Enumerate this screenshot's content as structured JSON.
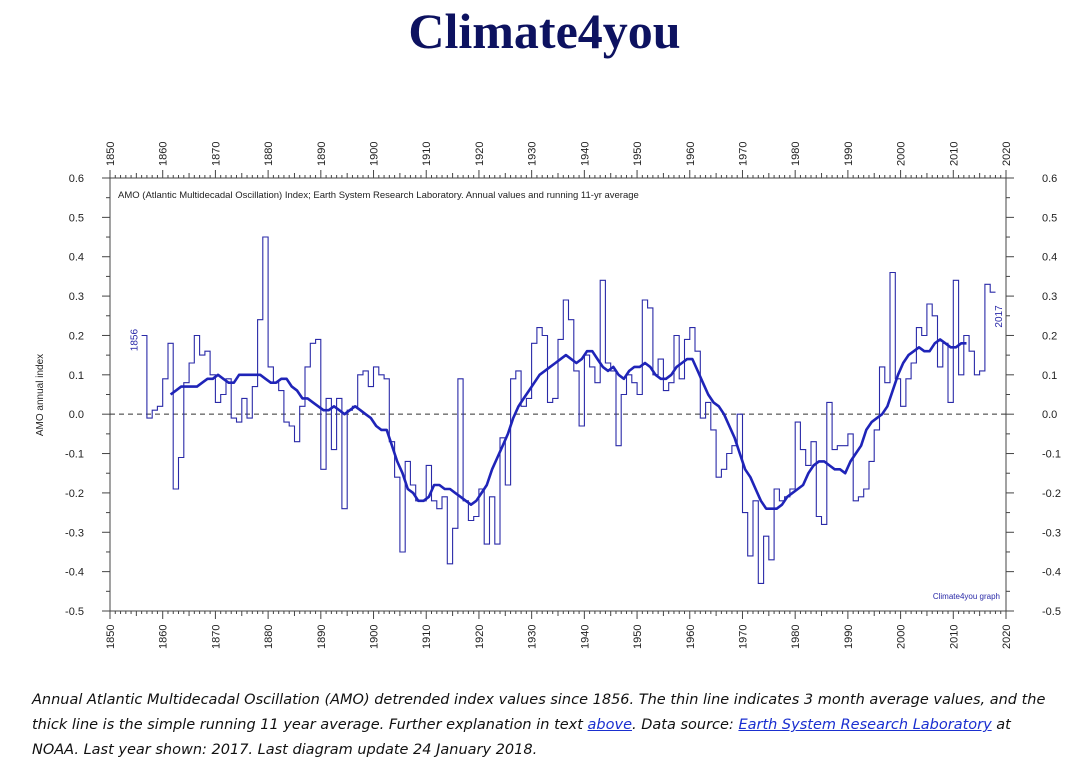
{
  "site_title": "Climate4you",
  "caption": {
    "part1": "Annual Atlantic Multidecadal Oscillation (AMO) detrended index values since 1856. The thin line indicates 3 month average values, and the thick line is the simple running 11 year average. Further explanation in text ",
    "link_above": "above",
    "part2": ". Data source: ",
    "link_source": "Earth System Research Laboratory",
    "part3": " at NOAA. Last year shown: 2017. Last diagram update 24 January 2018."
  },
  "colors": {
    "title": "#0d1260",
    "thin_line": "#2a2aa8",
    "thick_line": "#1f24b8",
    "zero_line": "#333333",
    "link": "#1a2fd0"
  },
  "chart_data": {
    "type": "line",
    "title": "AMO (Atlantic Multidecadal Oscillation) Index; Earth System Research Laboratory. Annual values and running 11-yr average",
    "ylabel": "AMO annual index",
    "xlim": [
      1850,
      2020
    ],
    "ylim": [
      -0.5,
      0.6
    ],
    "x_ticks": [
      1850,
      1860,
      1870,
      1880,
      1890,
      1900,
      1910,
      1920,
      1930,
      1940,
      1950,
      1960,
      1970,
      1980,
      1990,
      2000,
      2010,
      2020
    ],
    "y_ticks": [
      "0.6",
      "0.5",
      "0.4",
      "0.3",
      "0.2",
      "0.1",
      "0.0",
      "-0.1",
      "-0.2",
      "-0.3",
      "-0.4",
      "-0.5"
    ],
    "annotations": {
      "start_year": "1856",
      "end_year": "2017",
      "credit": "Climate4you graph"
    },
    "series": [
      {
        "style": "thin-step",
        "x": [
          1856,
          1857,
          1858,
          1859,
          1860,
          1861,
          1862,
          1863,
          1864,
          1865,
          1866,
          1867,
          1868,
          1869,
          1870,
          1871,
          1872,
          1873,
          1874,
          1875,
          1876,
          1877,
          1878,
          1879,
          1880,
          1881,
          1882,
          1883,
          1884,
          1885,
          1886,
          1887,
          1888,
          1889,
          1890,
          1891,
          1892,
          1893,
          1894,
          1895,
          1896,
          1897,
          1898,
          1899,
          1900,
          1901,
          1902,
          1903,
          1904,
          1905,
          1906,
          1907,
          1908,
          1909,
          1910,
          1911,
          1912,
          1913,
          1914,
          1915,
          1916,
          1917,
          1918,
          1919,
          1920,
          1921,
          1922,
          1923,
          1924,
          1925,
          1926,
          1927,
          1928,
          1929,
          1930,
          1931,
          1932,
          1933,
          1934,
          1935,
          1936,
          1937,
          1938,
          1939,
          1940,
          1941,
          1942,
          1943,
          1944,
          1945,
          1946,
          1947,
          1948,
          1949,
          1950,
          1951,
          1952,
          1953,
          1954,
          1955,
          1956,
          1957,
          1958,
          1959,
          1960,
          1961,
          1962,
          1963,
          1964,
          1965,
          1966,
          1967,
          1968,
          1969,
          1970,
          1971,
          1972,
          1973,
          1974,
          1975,
          1976,
          1977,
          1978,
          1979,
          1980,
          1981,
          1982,
          1983,
          1984,
          1985,
          1986,
          1987,
          1988,
          1989,
          1990,
          1991,
          1992,
          1993,
          1994,
          1995,
          1996,
          1997,
          1998,
          1999,
          2000,
          2001,
          2002,
          2003,
          2004,
          2005,
          2006,
          2007,
          2008,
          2009,
          2010,
          2011,
          2012,
          2013,
          2014,
          2015,
          2016,
          2017
        ],
        "y": [
          0.2,
          -0.01,
          0.01,
          0.02,
          0.09,
          0.18,
          -0.19,
          -0.11,
          0.08,
          0.13,
          0.2,
          0.15,
          0.16,
          0.1,
          0.03,
          0.05,
          0.09,
          -0.01,
          -0.02,
          0.04,
          -0.01,
          0.07,
          0.24,
          0.45,
          0.12,
          0.08,
          0.06,
          -0.02,
          -0.03,
          -0.07,
          0.02,
          0.12,
          0.18,
          0.19,
          -0.14,
          0.04,
          -0.09,
          0.04,
          -0.24,
          0.01,
          0.02,
          0.1,
          0.11,
          0.07,
          0.12,
          0.1,
          0.09,
          -0.07,
          -0.16,
          -0.35,
          -0.12,
          -0.18,
          -0.22,
          -0.22,
          -0.13,
          -0.22,
          -0.24,
          -0.21,
          -0.38,
          -0.29,
          0.09,
          -0.22,
          -0.27,
          -0.26,
          -0.19,
          -0.33,
          -0.21,
          -0.33,
          -0.06,
          -0.18,
          0.09,
          0.11,
          0.02,
          0.04,
          0.18,
          0.22,
          0.2,
          0.03,
          0.04,
          0.19,
          0.29,
          0.24,
          0.11,
          -0.03,
          0.15,
          0.12,
          0.08,
          0.34,
          0.13,
          0.11,
          -0.08,
          0.05,
          0.1,
          0.08,
          0.05,
          0.29,
          0.27,
          0.1,
          0.14,
          0.06,
          0.08,
          0.2,
          0.09,
          0.19,
          0.22,
          0.16,
          -0.01,
          0.03,
          -0.04,
          -0.16,
          -0.14,
          -0.1,
          -0.08,
          0.0,
          -0.25,
          -0.36,
          -0.22,
          -0.43,
          -0.31,
          -0.37,
          -0.19,
          -0.22,
          -0.21,
          -0.19,
          -0.02,
          -0.09,
          -0.13,
          -0.07,
          -0.26,
          -0.28,
          0.03,
          -0.09,
          -0.08,
          -0.08,
          -0.05,
          -0.22,
          -0.21,
          -0.19,
          -0.12,
          -0.04,
          0.12,
          0.08,
          0.36,
          0.09,
          0.02,
          0.09,
          0.13,
          0.22,
          0.2,
          0.28,
          0.25,
          0.12,
          0.18,
          0.03,
          0.34,
          0.1,
          0.2,
          0.16,
          0.1,
          0.11,
          0.33,
          0.31
        ]
      },
      {
        "style": "thick-smooth",
        "x": [
          1861,
          1862,
          1863,
          1864,
          1865,
          1866,
          1867,
          1868,
          1869,
          1870,
          1871,
          1872,
          1873,
          1874,
          1875,
          1876,
          1877,
          1878,
          1879,
          1880,
          1881,
          1882,
          1883,
          1884,
          1885,
          1886,
          1887,
          1888,
          1889,
          1890,
          1891,
          1892,
          1893,
          1894,
          1895,
          1896,
          1897,
          1898,
          1899,
          1900,
          1901,
          1902,
          1903,
          1904,
          1905,
          1906,
          1907,
          1908,
          1909,
          1910,
          1911,
          1912,
          1913,
          1914,
          1915,
          1916,
          1917,
          1918,
          1919,
          1920,
          1921,
          1922,
          1923,
          1924,
          1925,
          1926,
          1927,
          1928,
          1929,
          1930,
          1931,
          1932,
          1933,
          1934,
          1935,
          1936,
          1937,
          1938,
          1939,
          1940,
          1941,
          1942,
          1943,
          1944,
          1945,
          1946,
          1947,
          1948,
          1949,
          1950,
          1951,
          1952,
          1953,
          1954,
          1955,
          1956,
          1957,
          1958,
          1959,
          1960,
          1961,
          1962,
          1963,
          1964,
          1965,
          1966,
          1967,
          1968,
          1969,
          1970,
          1971,
          1972,
          1973,
          1974,
          1975,
          1976,
          1977,
          1978,
          1979,
          1980,
          1981,
          1982,
          1983,
          1984,
          1985,
          1986,
          1987,
          1988,
          1989,
          1990,
          1991,
          1992,
          1993,
          1994,
          1995,
          1996,
          1997,
          1998,
          1999,
          2000,
          2001,
          2002,
          2003,
          2004,
          2005,
          2006,
          2007,
          2008,
          2009,
          2010,
          2011,
          2012
        ],
        "y": [
          0.05,
          0.06,
          0.07,
          0.07,
          0.07,
          0.07,
          0.08,
          0.09,
          0.09,
          0.1,
          0.09,
          0.08,
          0.08,
          0.1,
          0.1,
          0.1,
          0.1,
          0.1,
          0.09,
          0.08,
          0.08,
          0.09,
          0.09,
          0.07,
          0.06,
          0.04,
          0.04,
          0.03,
          0.02,
          0.01,
          0.01,
          0.02,
          0.01,
          0.0,
          0.01,
          0.02,
          0.01,
          0.0,
          -0.01,
          -0.03,
          -0.04,
          -0.04,
          -0.08,
          -0.12,
          -0.15,
          -0.19,
          -0.2,
          -0.22,
          -0.22,
          -0.21,
          -0.18,
          -0.18,
          -0.19,
          -0.19,
          -0.2,
          -0.21,
          -0.22,
          -0.23,
          -0.22,
          -0.2,
          -0.18,
          -0.14,
          -0.11,
          -0.08,
          -0.05,
          -0.01,
          0.02,
          0.04,
          0.06,
          0.08,
          0.1,
          0.11,
          0.12,
          0.13,
          0.14,
          0.15,
          0.14,
          0.13,
          0.14,
          0.16,
          0.16,
          0.14,
          0.12,
          0.11,
          0.12,
          0.1,
          0.09,
          0.11,
          0.12,
          0.12,
          0.13,
          0.12,
          0.1,
          0.09,
          0.09,
          0.1,
          0.12,
          0.13,
          0.14,
          0.14,
          0.11,
          0.08,
          0.05,
          0.03,
          0.02,
          0.0,
          -0.03,
          -0.06,
          -0.1,
          -0.14,
          -0.16,
          -0.19,
          -0.22,
          -0.24,
          -0.24,
          -0.24,
          -0.23,
          -0.21,
          -0.2,
          -0.19,
          -0.18,
          -0.15,
          -0.13,
          -0.12,
          -0.12,
          -0.13,
          -0.14,
          -0.14,
          -0.15,
          -0.12,
          -0.1,
          -0.08,
          -0.04,
          -0.02,
          -0.01,
          0.0,
          0.02,
          0.06,
          0.1,
          0.13,
          0.15,
          0.16,
          0.17,
          0.16,
          0.16,
          0.18,
          0.19,
          0.18,
          0.17,
          0.17,
          0.18,
          0.18
        ]
      }
    ]
  }
}
